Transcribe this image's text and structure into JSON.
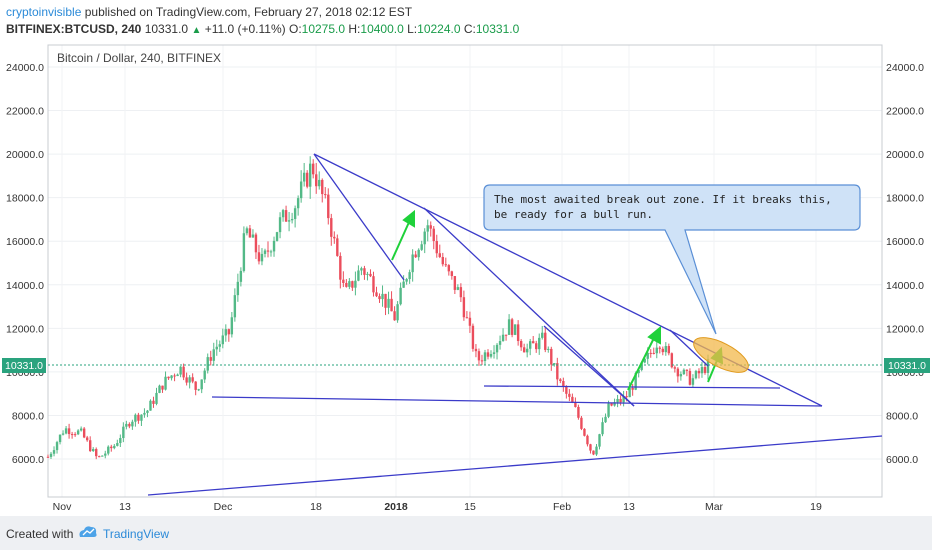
{
  "header": {
    "author": "cryptoinvisible",
    "published": "published on TradingView.com, February 27, 2018 02:12 EST",
    "symbol": "BITFINEX:BTCUSD, 240",
    "last": "10331.0",
    "change": "+11.0 (+0.11%)",
    "o_label": "O:",
    "o": "10275.0",
    "h_label": "H:",
    "h": "10400.0",
    "l_label": "L:",
    "l": "10224.0",
    "c_label": "C:",
    "c": "10331.0"
  },
  "footer": {
    "created_with": "Created with",
    "brand": "TradingView"
  },
  "chart_data": {
    "type": "line",
    "title": "Bitcoin / Dollar, 240, BITFINEX",
    "ylim": [
      4500,
      25500
    ],
    "yticks": [
      "24000.0",
      "22000.0",
      "20000.0",
      "18000.0",
      "16000.0",
      "14000.0",
      "12000.0",
      "10000.0",
      "8000.0",
      "6000.0"
    ],
    "xticks": [
      "Nov",
      "13",
      "Dec",
      "18",
      "2018",
      "15",
      "Feb",
      "13",
      "Mar",
      "19"
    ],
    "last_price_label": "10331.0",
    "series": [
      {
        "x": [
          "Nov 1",
          "Nov 5",
          "Nov 9",
          "Nov 12",
          "Nov 14",
          "Nov 18",
          "Nov 22",
          "Nov 26",
          "Nov 28",
          "Nov 30",
          "Dec 2",
          "Dec 5",
          "Dec 7",
          "Dec 10",
          "Dec 13",
          "Dec 15",
          "Dec 17",
          "Dec 19",
          "Dec 22",
          "Dec 25",
          "Dec 28",
          "Dec 31",
          "Jan 3",
          "Jan 6",
          "Jan 9",
          "Jan 12",
          "Jan 15",
          "Jan 17",
          "Jan 20",
          "Jan 24",
          "Jan 28",
          "Feb 1",
          "Feb 3",
          "Feb 6",
          "Feb 9",
          "Feb 12",
          "Feb 16",
          "Feb 20",
          "Feb 23",
          "Feb 25",
          "Feb 27"
        ],
        "values": [
          6100,
          7400,
          7200,
          6000,
          6600,
          7800,
          8200,
          9500,
          10200,
          9200,
          11000,
          11800,
          16500,
          15000,
          16800,
          17700,
          19500,
          17200,
          13500,
          14800,
          13800,
          12500,
          15200,
          16800,
          14800,
          13500,
          10500,
          11200,
          12200,
          11000,
          11500,
          9500,
          8200,
          6200,
          8400,
          8800,
          10200,
          11500,
          10200,
          9600,
          10331
        ]
      }
    ],
    "annotations": {
      "callout": "The most awaited break out zone. If it breaks this, be ready for a bull run."
    }
  }
}
